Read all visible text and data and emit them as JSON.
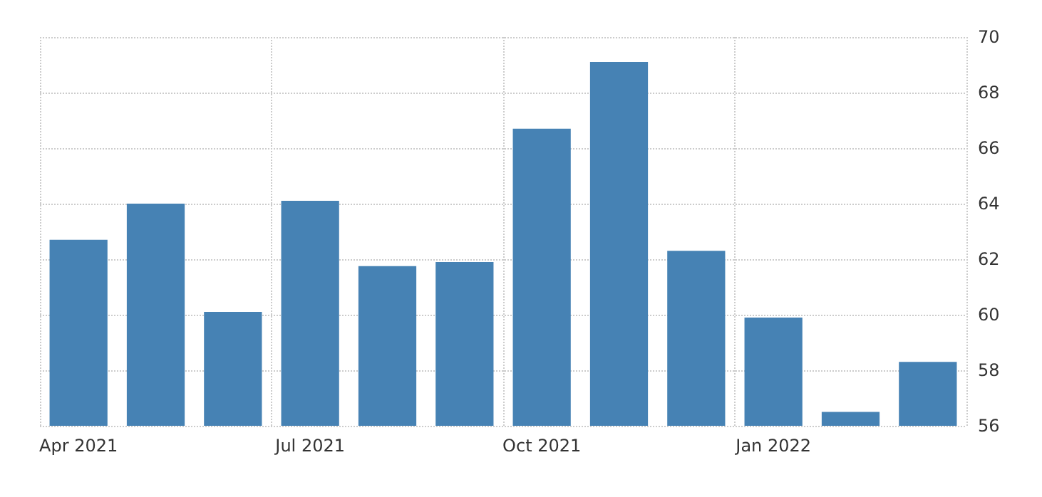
{
  "chart_data": {
    "type": "bar",
    "categories": [
      "Apr 2021",
      null,
      null,
      "Jul 2021",
      null,
      null,
      "Oct 2021",
      null,
      null,
      "Jan 2022",
      null,
      null
    ],
    "values": [
      62.7,
      64.0,
      60.1,
      64.1,
      61.75,
      61.9,
      66.7,
      69.1,
      62.3,
      59.9,
      56.5,
      58.3
    ],
    "color": "#4682b4",
    "ylim": [
      56,
      70
    ],
    "yticks": [
      56,
      58,
      60,
      62,
      64,
      66,
      68,
      70
    ],
    "grid": true
  }
}
